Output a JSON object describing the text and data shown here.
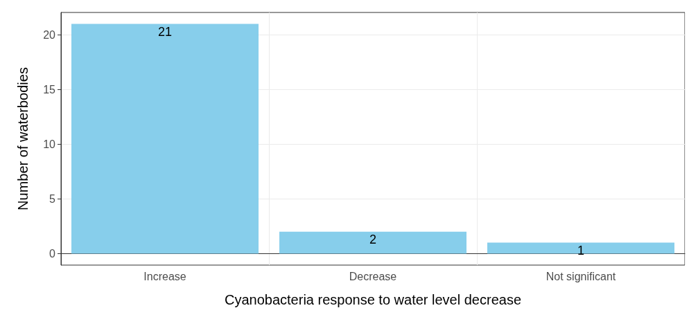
{
  "chart_data": {
    "type": "bar",
    "xlabel": "Cyanobacteria response to water level decrease",
    "ylabel": "Number of waterbodies",
    "categories": [
      "Increase",
      "Decrease",
      "Not significant"
    ],
    "values": [
      21,
      2,
      1
    ],
    "color": "#87ceeb",
    "data_labels": true,
    "ylim": [
      -1.05,
      22.05
    ],
    "yticks": [
      0,
      5,
      10,
      15,
      20
    ],
    "grid": true
  }
}
